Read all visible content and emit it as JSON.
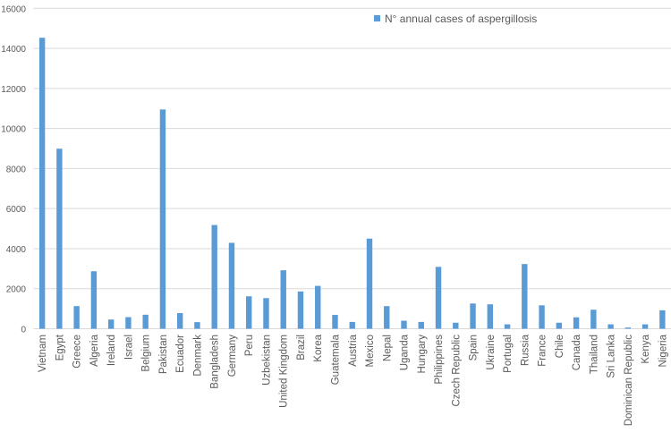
{
  "chart_data": {
    "type": "bar",
    "title": "",
    "xlabel": "",
    "ylabel": "",
    "ylim": [
      0,
      16000
    ],
    "yticks": [
      0,
      2000,
      4000,
      6000,
      8000,
      10000,
      12000,
      14000,
      16000
    ],
    "grid": true,
    "legend_position": "top-right",
    "bar_color": "#5B9BD5",
    "categories": [
      "Vietnam",
      "Egypt",
      "Greece",
      "Algeria",
      "Ireland",
      "Israel",
      "Belgium",
      "Pakistan",
      "Ecuador",
      "Denmark",
      "Bangladesh",
      "Germany",
      "Peru",
      "Uzbekistan",
      "United Kingdom",
      "Brazil",
      "Korea",
      "Guatemala",
      "Austria",
      "Mexico",
      "Nepal",
      "Uganda",
      "Hungary",
      "Philippines",
      "Czech Republic",
      "Spain",
      "Ukraine",
      "Portugal",
      "Russia",
      "France",
      "Chile",
      "Canada",
      "Thailand",
      "Sri Lanka",
      "Dominican Republic",
      "Kenya",
      "Nigeria"
    ],
    "series": [
      {
        "name": "N° annual cases of aspergillosis",
        "values": [
          14530,
          8990,
          1130,
          2870,
          460,
          580,
          700,
          10950,
          780,
          330,
          5180,
          4290,
          1620,
          1530,
          2920,
          1860,
          2140,
          690,
          340,
          4500,
          1130,
          400,
          340,
          3090,
          300,
          1260,
          1220,
          220,
          3230,
          1170,
          300,
          570,
          950,
          220,
          60,
          220,
          920
        ]
      }
    ]
  }
}
